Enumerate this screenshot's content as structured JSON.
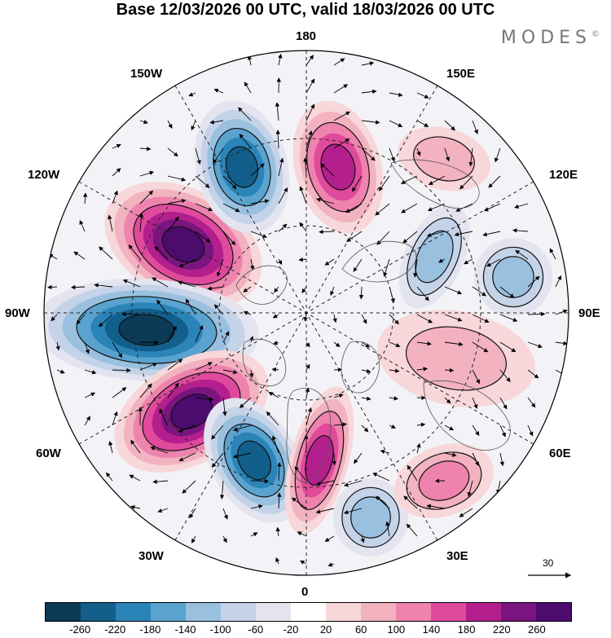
{
  "title": "Base 12/03/2026 00 UTC, valid 18/03/2026 00 UTC",
  "logo": "MODES",
  "logo_mark": "©",
  "longitude_labels": {
    "top": "180",
    "top_left": "150W",
    "top_right": "150E",
    "upper_left": "120W",
    "upper_right": "120E",
    "left": "90W",
    "right": "90E",
    "lower_left": "60W",
    "lower_right": "60E",
    "bottom_left": "30W",
    "bottom_right": "30E",
    "bottom": "0"
  },
  "reference_vector": "30",
  "colorbar": {
    "colors": [
      "#0b3a57",
      "#125f8c",
      "#2b84b8",
      "#5aa3cf",
      "#9ac0df",
      "#c4d3e8",
      "#e4e4f0",
      "#ffffff",
      "#f7d7d9",
      "#f2b2c0",
      "#ee83ad",
      "#e04a9c",
      "#b3208d",
      "#7a157f",
      "#4b0c6e"
    ],
    "ticks": [
      "-260",
      "-220",
      "-180",
      "-140",
      "-100",
      "-60",
      "-20",
      "20",
      "60",
      "100",
      "140",
      "180",
      "220",
      "260"
    ]
  },
  "anomaly_centers": [
    {
      "name": "north-america-west-high",
      "sign": "positive",
      "magnitude": 260
    },
    {
      "name": "canada-low",
      "sign": "negative",
      "magnitude": 260
    },
    {
      "name": "greenland-west-high",
      "sign": "positive",
      "magnitude": 260
    },
    {
      "name": "north-atlantic-low",
      "sign": "negative",
      "magnitude": 240
    },
    {
      "name": "north-pacific-low",
      "sign": "negative",
      "magnitude": 220
    },
    {
      "name": "bering-high",
      "sign": "positive",
      "magnitude": 200
    },
    {
      "name": "europe-high",
      "sign": "positive",
      "magnitude": 180
    },
    {
      "name": "siberia-low",
      "sign": "negative",
      "magnitude": 120
    },
    {
      "name": "central-asia-low",
      "sign": "negative",
      "magnitude": 100
    },
    {
      "name": "east-siberia-high",
      "sign": "positive",
      "magnitude": 80
    },
    {
      "name": "mediterranean-low",
      "sign": "negative",
      "magnitude": 100
    },
    {
      "name": "russia-high",
      "sign": "positive",
      "magnitude": 100
    },
    {
      "name": "asia-high",
      "sign": "positive",
      "magnitude": 60
    }
  ]
}
